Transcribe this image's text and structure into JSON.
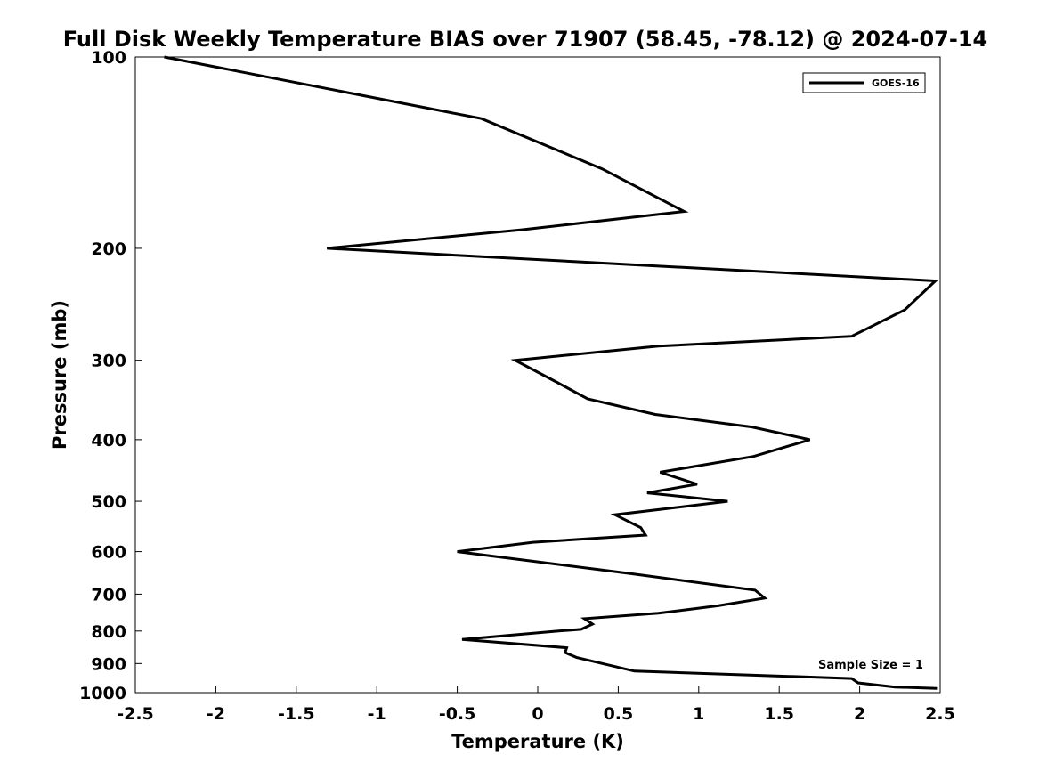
{
  "chart_data": {
    "type": "line",
    "title": "Full Disk Weekly Temperature BIAS over 71907 (58.45, -78.12) @ 2024-07-14",
    "xlabel": "Temperature (K)",
    "ylabel": "Pressure (mb)",
    "xlim": [
      -2.5,
      2.5
    ],
    "ylim": [
      100,
      1000
    ],
    "y_scale": "log",
    "y_reversed": true,
    "grid": false,
    "legend_position": "top-right",
    "x_ticks": [
      {
        "value": -2.5,
        "label": "-2.5"
      },
      {
        "value": -2,
        "label": "-2"
      },
      {
        "value": -1.5,
        "label": "-1.5"
      },
      {
        "value": -1,
        "label": "-1"
      },
      {
        "value": -0.5,
        "label": "-0.5"
      },
      {
        "value": 0,
        "label": "0"
      },
      {
        "value": 0.5,
        "label": "0.5"
      },
      {
        "value": 1,
        "label": "1"
      },
      {
        "value": 1.5,
        "label": "1.5"
      },
      {
        "value": 2,
        "label": "2"
      },
      {
        "value": 2.5,
        "label": "2.5"
      }
    ],
    "y_ticks": [
      {
        "value": 100,
        "label": "100"
      },
      {
        "value": 200,
        "label": "200"
      },
      {
        "value": 300,
        "label": "300"
      },
      {
        "value": 400,
        "label": "400"
      },
      {
        "value": 500,
        "label": "500"
      },
      {
        "value": 600,
        "label": "600"
      },
      {
        "value": 700,
        "label": "700"
      },
      {
        "value": 800,
        "label": "800"
      },
      {
        "value": 900,
        "label": "900"
      },
      {
        "value": 1000,
        "label": "1000"
      }
    ],
    "series": [
      {
        "name": "GOES-16",
        "color": "#000000",
        "points": [
          {
            "x": -2.32,
            "y": 100
          },
          {
            "x": -0.35,
            "y": 125
          },
          {
            "x": 0.4,
            "y": 150
          },
          {
            "x": 0.91,
            "y": 175
          },
          {
            "x": -0.1,
            "y": 187
          },
          {
            "x": -1.31,
            "y": 200
          },
          {
            "x": 2.47,
            "y": 225
          },
          {
            "x": 2.28,
            "y": 250
          },
          {
            "x": 1.95,
            "y": 275
          },
          {
            "x": 0.75,
            "y": 285
          },
          {
            "x": -0.14,
            "y": 300
          },
          {
            "x": 0.12,
            "y": 325
          },
          {
            "x": 0.31,
            "y": 345
          },
          {
            "x": 0.73,
            "y": 365
          },
          {
            "x": 1.33,
            "y": 382
          },
          {
            "x": 1.69,
            "y": 400
          },
          {
            "x": 1.34,
            "y": 425
          },
          {
            "x": 0.76,
            "y": 450
          },
          {
            "x": 0.99,
            "y": 470
          },
          {
            "x": 0.68,
            "y": 485
          },
          {
            "x": 1.18,
            "y": 500
          },
          {
            "x": 0.48,
            "y": 525
          },
          {
            "x": 0.64,
            "y": 550
          },
          {
            "x": 0.67,
            "y": 565
          },
          {
            "x": -0.03,
            "y": 580
          },
          {
            "x": -0.5,
            "y": 600
          },
          {
            "x": 0.58,
            "y": 650
          },
          {
            "x": 1.35,
            "y": 690
          },
          {
            "x": 1.41,
            "y": 710
          },
          {
            "x": 1.12,
            "y": 730
          },
          {
            "x": 0.75,
            "y": 750
          },
          {
            "x": 0.29,
            "y": 765
          },
          {
            "x": 0.34,
            "y": 780
          },
          {
            "x": 0.27,
            "y": 795
          },
          {
            "x": 0.13,
            "y": 800
          },
          {
            "x": -0.47,
            "y": 825
          },
          {
            "x": 0.18,
            "y": 850
          },
          {
            "x": 0.17,
            "y": 865
          },
          {
            "x": 0.24,
            "y": 880
          },
          {
            "x": 0.6,
            "y": 925
          },
          {
            "x": 1.95,
            "y": 950
          },
          {
            "x": 1.99,
            "y": 965
          },
          {
            "x": 2.22,
            "y": 980
          },
          {
            "x": 2.48,
            "y": 985
          }
        ]
      }
    ],
    "annotations": [
      {
        "text": "Sample Size = 1"
      }
    ]
  }
}
